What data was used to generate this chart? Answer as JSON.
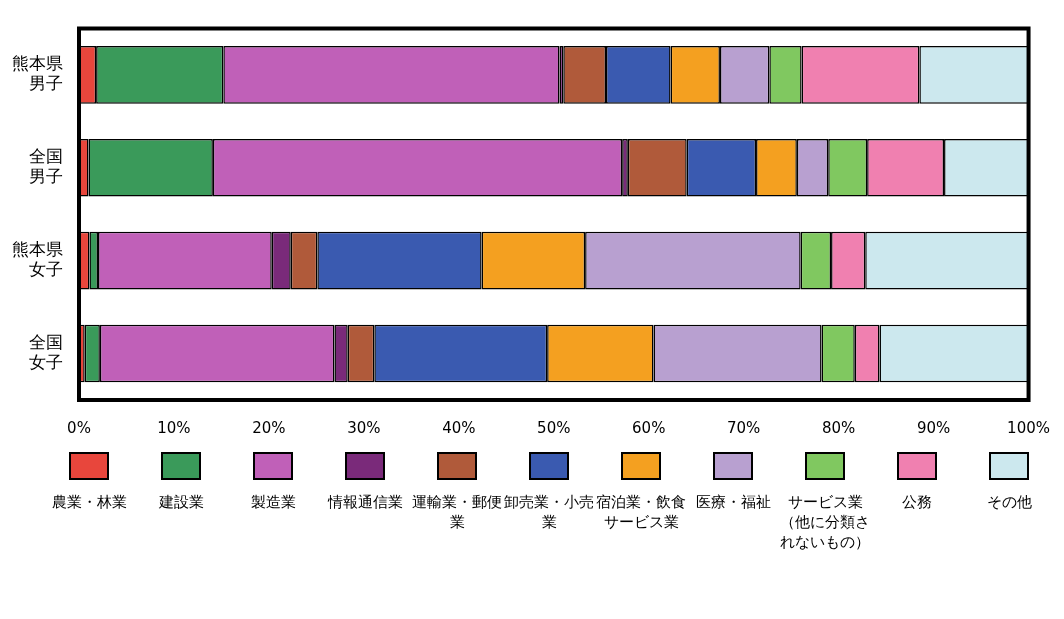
{
  "chart_data": {
    "type": "bar",
    "orientation": "horizontal",
    "stacked": true,
    "categories": [
      "熊本県男子",
      "全国男子",
      "熊本県女子",
      "全国女子"
    ],
    "series": [
      {
        "name": "農業・林業",
        "color": "#e8463c",
        "values": [
          1.8,
          1.0,
          1.1,
          0.6
        ]
      },
      {
        "name": "建設業",
        "color": "#3a9a5a",
        "values": [
          13.4,
          13.1,
          0.9,
          1.6
        ]
      },
      {
        "name": "製造業",
        "color": "#c060b8",
        "values": [
          35.4,
          43.1,
          18.3,
          24.7
        ]
      },
      {
        "name": "情報通信業",
        "color": "#7a2a7a",
        "values": [
          0.4,
          0.6,
          2.0,
          1.4
        ]
      },
      {
        "name": "運輸業・郵便業",
        "color": "#b05a3a",
        "values": [
          4.5,
          6.2,
          2.8,
          2.8
        ]
      },
      {
        "name": "卸売業・小売業",
        "color": "#3a5ab0",
        "values": [
          6.8,
          7.3,
          17.3,
          18.2
        ]
      },
      {
        "name": "宿泊業・飲食サービス業",
        "color": "#f4a020",
        "values": [
          5.2,
          4.3,
          10.9,
          11.2
        ]
      },
      {
        "name": "医療・福祉",
        "color": "#b8a0d0",
        "values": [
          5.2,
          3.3,
          22.7,
          17.7
        ]
      },
      {
        "name": "サービス業（他に分類されないもの）",
        "color": "#80c860",
        "values": [
          3.4,
          4.1,
          3.2,
          3.5
        ]
      },
      {
        "name": "公務",
        "color": "#f080b0",
        "values": [
          12.4,
          8.1,
          3.6,
          2.6
        ]
      },
      {
        "name": "その他",
        "color": "#cce8ee",
        "values": [
          11.5,
          8.9,
          17.2,
          15.7
        ]
      }
    ],
    "xlim": [
      0,
      100
    ],
    "xticks": [
      {
        "value": 0,
        "label": "0%"
      },
      {
        "value": 10,
        "label": "10%"
      },
      {
        "value": 20,
        "label": "20%"
      },
      {
        "value": 30,
        "label": "30%"
      },
      {
        "value": 40,
        "label": "40%"
      },
      {
        "value": 50,
        "label": "50%"
      },
      {
        "value": 60,
        "label": "60%"
      },
      {
        "value": 70,
        "label": "70%"
      },
      {
        "value": 80,
        "label": "80%"
      },
      {
        "value": 90,
        "label": "90%"
      },
      {
        "value": 100,
        "label": "100%"
      }
    ],
    "grid": false,
    "legend": "bottom"
  }
}
